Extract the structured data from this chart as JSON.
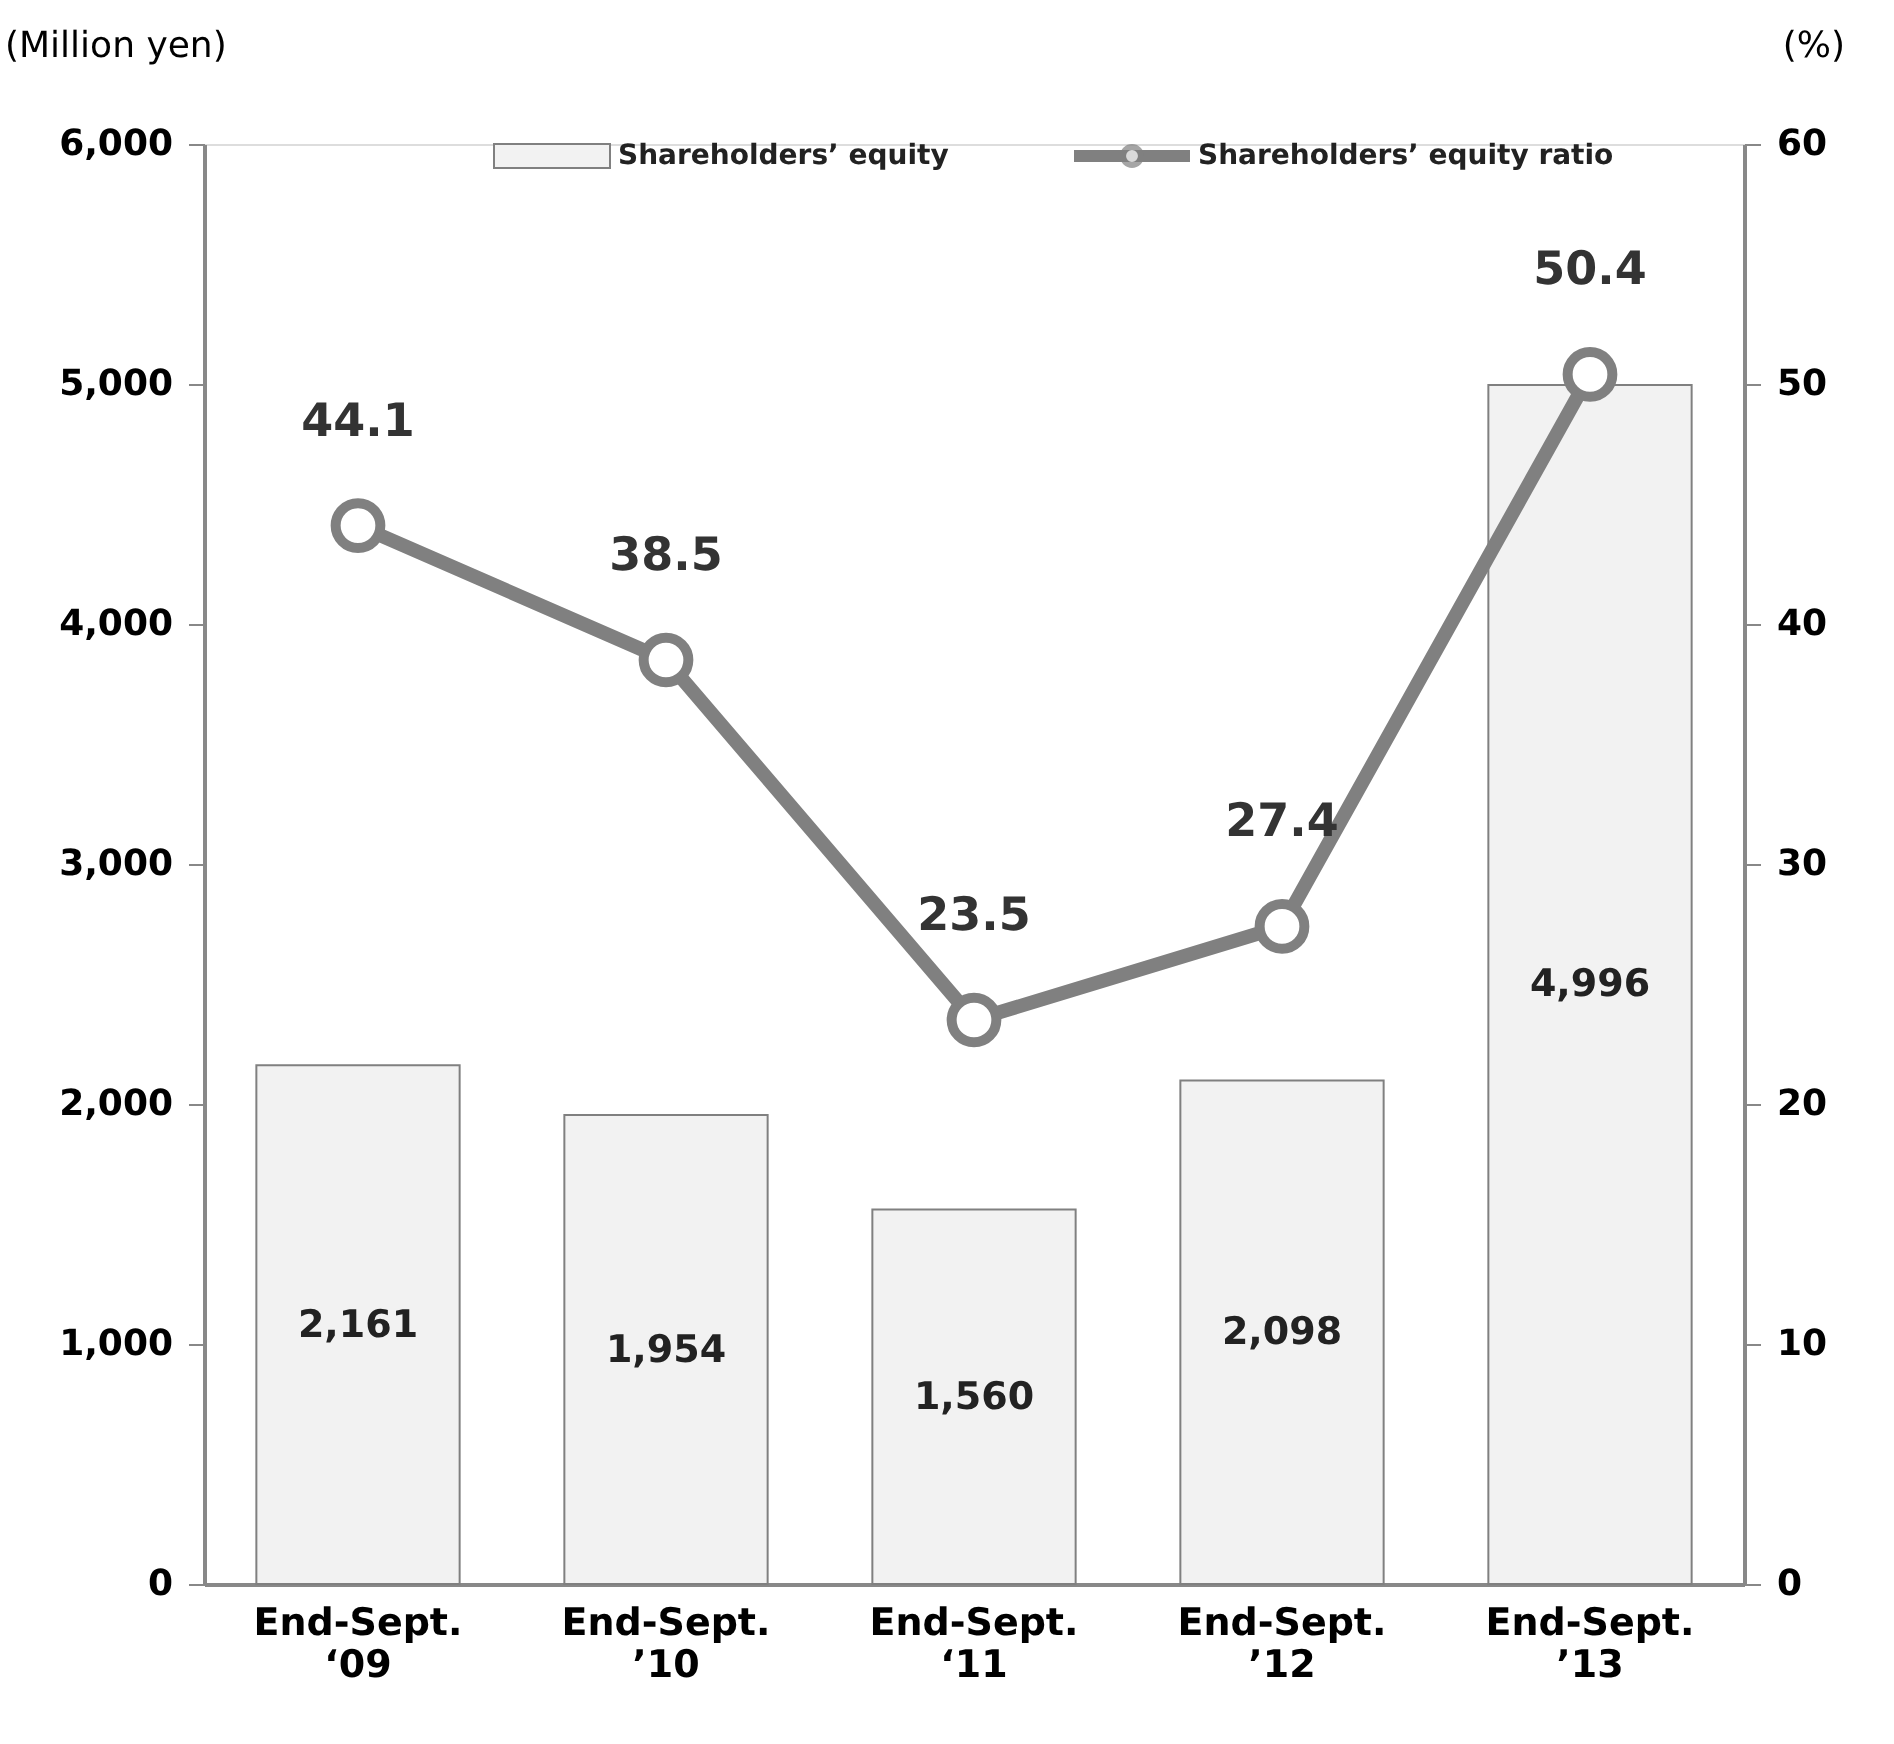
{
  "chart_data": {
    "type": "bar",
    "categories": [
      "End-Sept.\n‘09",
      "End-Sept.\n’10",
      "End-Sept.\n‘11",
      "End-Sept.\n’12",
      "End-Sept.\n’13"
    ],
    "ylabel": "(Million yen)",
    "y2label": "(%)",
    "ylim": [
      0,
      6000
    ],
    "yticks": [
      {
        "value": 0,
        "label": "0"
      },
      {
        "value": 1000,
        "label": "1,000"
      },
      {
        "value": 2000,
        "label": "2,000"
      },
      {
        "value": 3000,
        "label": "3,000"
      },
      {
        "value": 4000,
        "label": "4,000"
      },
      {
        "value": 5000,
        "label": "5,000"
      },
      {
        "value": 6000,
        "label": "6,000"
      }
    ],
    "y2lim": [
      0,
      60
    ],
    "y2ticks": [
      0,
      10,
      20,
      30,
      40,
      50,
      60
    ],
    "series": [
      {
        "name": "Shareholders’ equity",
        "color": "#f2f2f2",
        "values": [
          2161,
          1954,
          1560,
          2098,
          4996
        ],
        "value_labels": [
          "2,161",
          "1,954",
          "1,560",
          "2,098",
          "4,996"
        ]
      },
      {
        "name": "Shareholders’ equity ratio",
        "type": "line",
        "axis": "y2",
        "color": "#808080",
        "marker": "circle",
        "values": [
          44.1,
          38.5,
          23.5,
          27.4,
          50.4
        ]
      }
    ],
    "data_labels": true,
    "grid": false,
    "legend": "top"
  }
}
